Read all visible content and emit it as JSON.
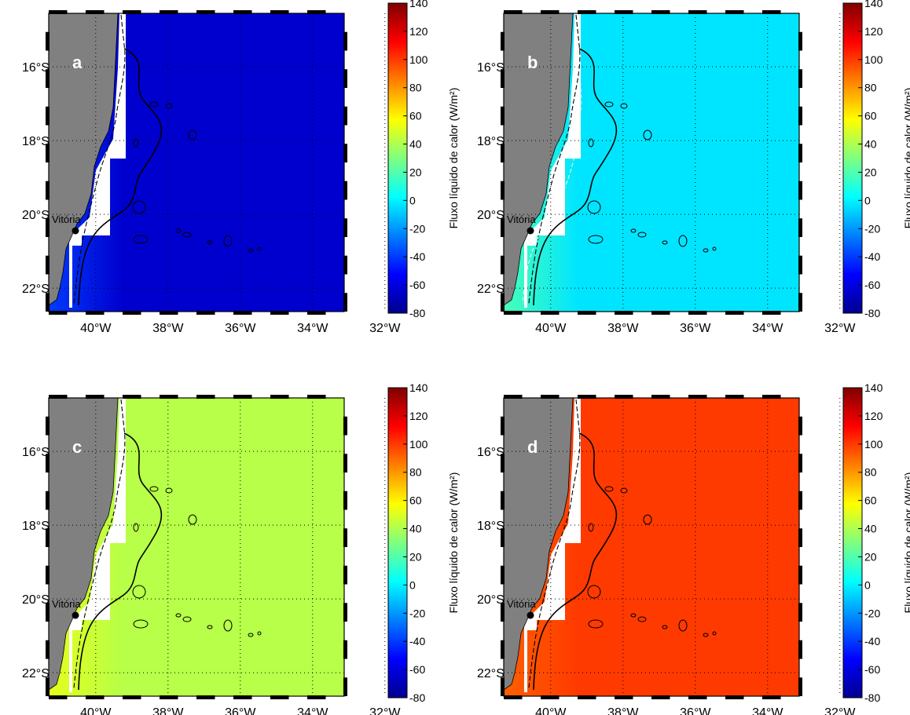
{
  "figure": {
    "lat_labels": [
      "16°S",
      "18°S",
      "20°S",
      "22°S"
    ],
    "lon_labels": [
      "40°W",
      "38°W",
      "36°W",
      "34°W",
      "32°W"
    ],
    "city": "Vitória",
    "colorbar_title": "Fluxo líquido de calor (W/m²)",
    "colorbar_ticks": [
      "140",
      "120",
      "100",
      "80",
      "60",
      "40",
      "20",
      "0",
      "-20",
      "-40",
      "-60",
      "-80"
    ],
    "colorscale": "jet",
    "colorbar_range": [
      -80,
      140
    ],
    "land_color": "#808080",
    "panels": [
      {
        "letter": "a",
        "flux_base": -63,
        "flux_coast": -40
      },
      {
        "letter": "b",
        "flux_base": -3,
        "flux_coast": 18
      },
      {
        "letter": "c",
        "flux_base": 42,
        "flux_coast": 52
      },
      {
        "letter": "d",
        "flux_base": 100,
        "flux_coast": 92
      }
    ]
  }
}
